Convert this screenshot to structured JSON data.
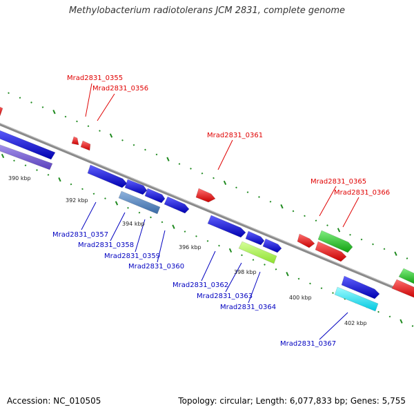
{
  "title": "Methylobacterium radiotolerans JCM 2831, complete genome",
  "footer": {
    "accession": "Accession: NC_010505",
    "topology": "Topology: circular; Length: 6,077,833 bp; Genes: 5,755"
  },
  "colors": {
    "backbone": "#8a8a8a",
    "gc_dots": "#1f8a1f",
    "label_top": "#e00000",
    "label_bottom": "#0000c0"
  },
  "scale_ticks": [
    "390 kbp",
    "392 kbp",
    "394 kbp",
    "396 kbp",
    "398 kbp",
    "400 kbp",
    "402 kbp"
  ],
  "genes_top": [
    {
      "label": "Mrad2831_0355",
      "color": "#ff0000"
    },
    {
      "label": "Mrad2831_0356",
      "color": "#ff0000"
    },
    {
      "label": "Mrad2831_0361",
      "color": "#ff0000"
    },
    {
      "label": "Mrad2831_0365",
      "color": "#ff0000"
    },
    {
      "label": "Mrad2831_0366",
      "color": "#ff0000"
    }
  ],
  "genes_bottom": [
    {
      "label": "Mrad2831_0357",
      "color": "#0000ff"
    },
    {
      "label": "Mrad2831_0358",
      "color": "#0000ff"
    },
    {
      "label": "Mrad2831_0359",
      "color": "#4f7fbf"
    },
    {
      "label": "Mrad2831_0360",
      "color": "#0000ff"
    },
    {
      "label": "Mrad2831_0362",
      "color": "#0000ff"
    },
    {
      "label": "Mrad2831_0363",
      "color": "#0000ff"
    },
    {
      "label": "Mrad2831_0364",
      "color": "#a8ff3a"
    },
    {
      "label": "Mrad2831_0367",
      "color": "#00e8ff"
    }
  ]
}
